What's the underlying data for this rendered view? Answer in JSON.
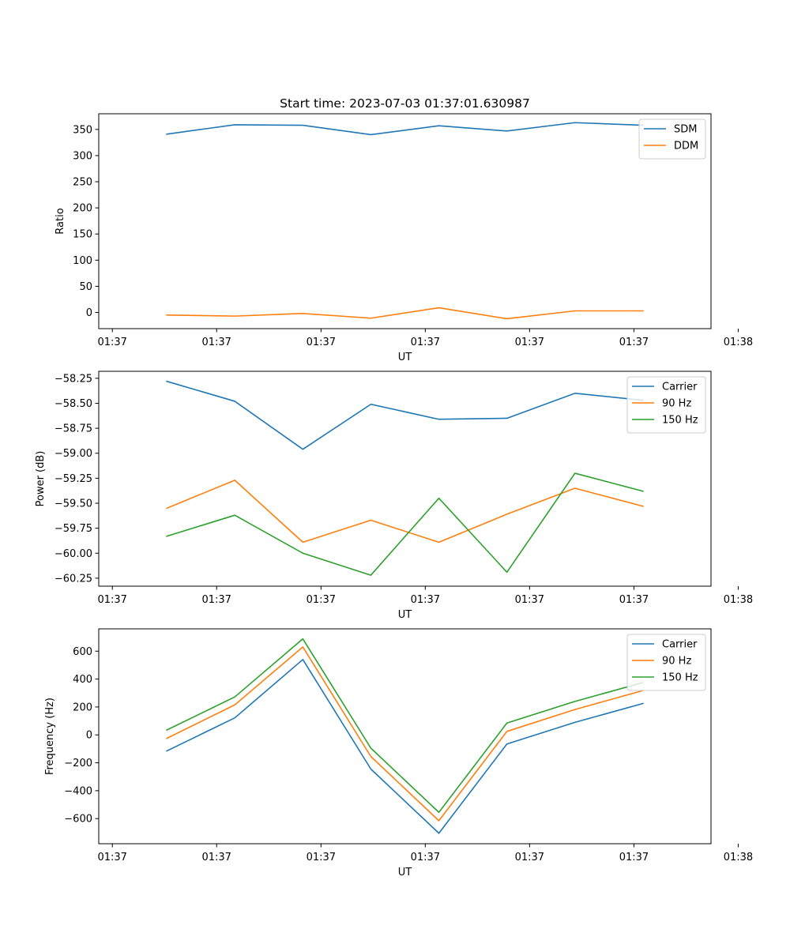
{
  "figure_title": "Start time: 2023-07-03 01:37:01.630987",
  "chart_data": [
    {
      "type": "line",
      "title": "Start time: 2023-07-03 01:37:01.630987",
      "xlabel": "UT",
      "ylabel": "Ratio",
      "x_index": [
        1,
        2,
        3,
        4,
        5,
        6,
        7,
        8
      ],
      "xlim": [
        0,
        9
      ],
      "x_ticks": [
        {
          "pos": 0.2,
          "label": "01:37"
        },
        {
          "pos": 1.733,
          "label": "01:37"
        },
        {
          "pos": 3.267,
          "label": "01:37"
        },
        {
          "pos": 4.8,
          "label": "01:37"
        },
        {
          "pos": 6.333,
          "label": "01:37"
        },
        {
          "pos": 7.867,
          "label": "01:37"
        },
        {
          "pos": 9.4,
          "label": "01:38"
        }
      ],
      "ylim": [
        -31,
        380
      ],
      "y_ticks": [
        {
          "value": 0,
          "label": "0"
        },
        {
          "value": 50,
          "label": "50"
        },
        {
          "value": 100,
          "label": "100"
        },
        {
          "value": 150,
          "label": "150"
        },
        {
          "value": 200,
          "label": "200"
        },
        {
          "value": 250,
          "label": "250"
        },
        {
          "value": 300,
          "label": "300"
        },
        {
          "value": 350,
          "label": "350"
        }
      ],
      "legend_position": "top-right",
      "series": [
        {
          "name": "SDM",
          "color": "#1f77b4",
          "values": [
            341,
            359,
            358,
            340,
            357,
            347,
            363,
            358
          ]
        },
        {
          "name": "DDM",
          "color": "#ff7f0e",
          "values": [
            -5,
            -7,
            -2,
            -11,
            9,
            -12,
            3,
            3
          ]
        }
      ]
    },
    {
      "type": "line",
      "xlabel": "UT",
      "ylabel": "Power (dB)",
      "x_index": [
        1,
        2,
        3,
        4,
        5,
        6,
        7,
        8
      ],
      "xlim": [
        0,
        9
      ],
      "x_ticks": [
        {
          "pos": 0.2,
          "label": "01:37"
        },
        {
          "pos": 1.733,
          "label": "01:37"
        },
        {
          "pos": 3.267,
          "label": "01:37"
        },
        {
          "pos": 4.8,
          "label": "01:37"
        },
        {
          "pos": 6.333,
          "label": "01:37"
        },
        {
          "pos": 7.867,
          "label": "01:37"
        },
        {
          "pos": 9.4,
          "label": "01:38"
        }
      ],
      "ylim": [
        -60.33,
        -58.18
      ],
      "y_ticks": [
        {
          "value": -58.25,
          "label": "−58.25"
        },
        {
          "value": -58.5,
          "label": "−58.50"
        },
        {
          "value": -58.75,
          "label": "−58.75"
        },
        {
          "value": -59.0,
          "label": "−59.00"
        },
        {
          "value": -59.25,
          "label": "−59.25"
        },
        {
          "value": -59.5,
          "label": "−59.50"
        },
        {
          "value": -59.75,
          "label": "−59.75"
        },
        {
          "value": -60.0,
          "label": "−60.00"
        },
        {
          "value": -60.25,
          "label": "−60.25"
        }
      ],
      "legend_position": "top-right",
      "series": [
        {
          "name": "Carrier",
          "color": "#1f77b4",
          "values": [
            -58.28,
            -58.48,
            -58.96,
            -58.51,
            -58.66,
            -58.65,
            -58.4,
            -58.47
          ]
        },
        {
          "name": "90 Hz",
          "color": "#ff7f0e",
          "values": [
            -59.55,
            -59.27,
            -59.89,
            -59.67,
            -59.89,
            -59.61,
            -59.35,
            -59.53
          ]
        },
        {
          "name": "150 Hz",
          "color": "#2ca02c",
          "values": [
            -59.83,
            -59.62,
            -60.0,
            -60.22,
            -59.45,
            -60.19,
            -59.2,
            -59.38
          ]
        }
      ]
    },
    {
      "type": "line",
      "xlabel": "UT",
      "ylabel": "Frequency (Hz)",
      "x_index": [
        1,
        2,
        3,
        4,
        5,
        6,
        7,
        8
      ],
      "xlim": [
        0,
        9
      ],
      "x_ticks": [
        {
          "pos": 0.2,
          "label": "01:37"
        },
        {
          "pos": 1.733,
          "label": "01:37"
        },
        {
          "pos": 3.267,
          "label": "01:37"
        },
        {
          "pos": 4.8,
          "label": "01:37"
        },
        {
          "pos": 6.333,
          "label": "01:37"
        },
        {
          "pos": 7.867,
          "label": "01:37"
        },
        {
          "pos": 9.4,
          "label": "01:38"
        }
      ],
      "ylim": [
        -780,
        760
      ],
      "y_ticks": [
        {
          "value": -600,
          "label": "−600"
        },
        {
          "value": -400,
          "label": "−400"
        },
        {
          "value": -200,
          "label": "−200"
        },
        {
          "value": 0,
          "label": "0"
        },
        {
          "value": 200,
          "label": "200"
        },
        {
          "value": 400,
          "label": "400"
        },
        {
          "value": 600,
          "label": "600"
        }
      ],
      "legend_position": "top-right",
      "series": [
        {
          "name": "Carrier",
          "color": "#1f77b4",
          "values": [
            -115,
            122,
            540,
            -245,
            -705,
            -65,
            90,
            225
          ]
        },
        {
          "name": "90 Hz",
          "color": "#ff7f0e",
          "values": [
            -25,
            215,
            630,
            -155,
            -615,
            25,
            182,
            318
          ]
        },
        {
          "name": "150 Hz",
          "color": "#2ca02c",
          "values": [
            35,
            272,
            688,
            -95,
            -555,
            85,
            240,
            375
          ]
        }
      ]
    }
  ]
}
